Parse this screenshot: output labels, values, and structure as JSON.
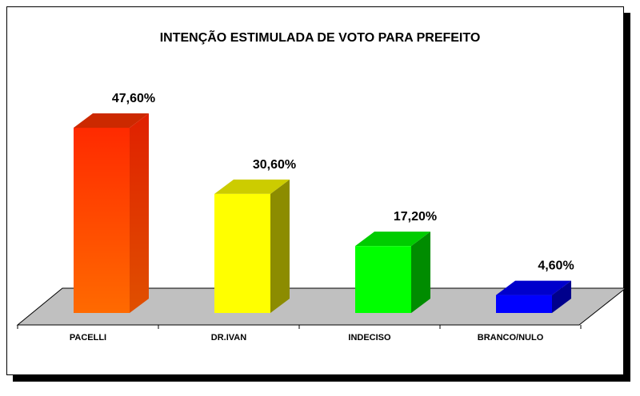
{
  "chart_data": {
    "type": "bar",
    "title": "INTENÇÃO ESTIMULADA DE VOTO PARA PREFEITO",
    "categories": [
      "PACELLI",
      "DR.IVAN",
      "INDECISO",
      "BRANCO/NULO"
    ],
    "values": [
      47.6,
      30.6,
      17.2,
      4.6
    ],
    "value_labels": [
      "47,60%",
      "30,60%",
      "17,20%",
      "4,60%"
    ],
    "colors": [
      "#ff3300",
      "#ffff00",
      "#00ff00",
      "#0000ff"
    ],
    "ylim": [
      0,
      50
    ],
    "grid": false,
    "legend": "none",
    "style": "3d-columns"
  }
}
